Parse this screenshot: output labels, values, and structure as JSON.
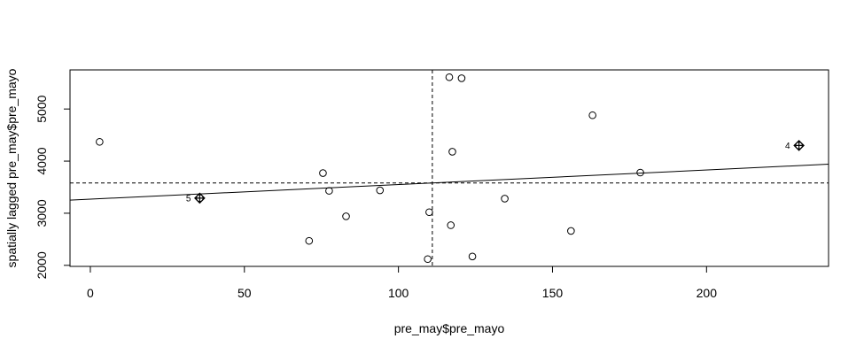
{
  "chart_data": {
    "type": "scatter",
    "xlabel": "pre_may$pre_mayo",
    "ylabel": "spatially lagged pre_may$pre_mayo",
    "xlim": [
      -6.6,
      239.6
    ],
    "ylim": [
      1980,
      5750
    ],
    "xticks": [
      0,
      50,
      100,
      150,
      200
    ],
    "yticks": [
      2000,
      3000,
      4000,
      5000
    ],
    "xtick_labels": [
      "0",
      "50",
      "100",
      "150",
      "200"
    ],
    "ytick_labels": [
      "2000",
      "3000",
      "4000",
      "5000"
    ],
    "mean_x": 111,
    "mean_y": 3580,
    "regression": {
      "intercept": 3270,
      "slope": 2.8
    },
    "points": [
      {
        "x": 3,
        "y": 4370
      },
      {
        "x": 35.5,
        "y": 3290,
        "influential": true,
        "label": "5"
      },
      {
        "x": 71,
        "y": 2470
      },
      {
        "x": 75.5,
        "y": 3770
      },
      {
        "x": 77.5,
        "y": 3430
      },
      {
        "x": 83,
        "y": 2940
      },
      {
        "x": 94,
        "y": 3440
      },
      {
        "x": 109.5,
        "y": 2120
      },
      {
        "x": 110,
        "y": 3020
      },
      {
        "x": 116.5,
        "y": 5610
      },
      {
        "x": 117,
        "y": 2770
      },
      {
        "x": 117.5,
        "y": 4180
      },
      {
        "x": 120.5,
        "y": 5590
      },
      {
        "x": 124,
        "y": 2170
      },
      {
        "x": 134.5,
        "y": 3280
      },
      {
        "x": 156,
        "y": 2660
      },
      {
        "x": 163,
        "y": 4880
      },
      {
        "x": 178.5,
        "y": 3780
      },
      {
        "x": 230,
        "y": 4300,
        "influential": true,
        "label": "4"
      }
    ]
  }
}
